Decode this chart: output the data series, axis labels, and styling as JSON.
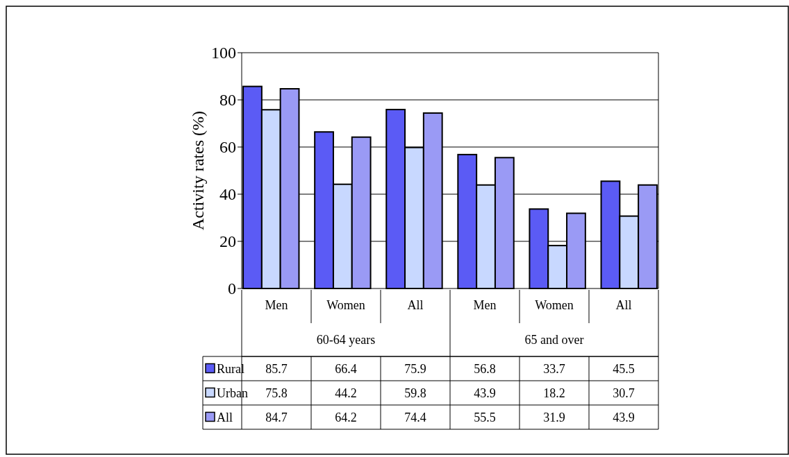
{
  "chart_data": {
    "type": "bar",
    "ylabel": "Activity rates (%)",
    "categories": [
      "Men",
      "Women",
      "All",
      "Men",
      "Women",
      "All"
    ],
    "annotations": [
      "60-64 years",
      "65 and over"
    ],
    "series": [
      {
        "name": "Rural",
        "color": "#5b5bf5",
        "values": [
          85.7,
          66.4,
          75.9,
          56.8,
          33.7,
          45.5
        ]
      },
      {
        "name": "Urban",
        "color": "#c8d8ff",
        "values": [
          75.8,
          44.2,
          59.8,
          43.9,
          18.2,
          30.7
        ]
      },
      {
        "name": "All",
        "color": "#9a9af5",
        "values": [
          84.7,
          64.2,
          74.4,
          55.5,
          31.9,
          43.9
        ]
      }
    ],
    "ylim": [
      0,
      100
    ],
    "yticks": [
      0,
      20,
      40,
      60,
      80,
      100
    ],
    "grid": "y",
    "legend": "bottom",
    "data_labels": true
  }
}
